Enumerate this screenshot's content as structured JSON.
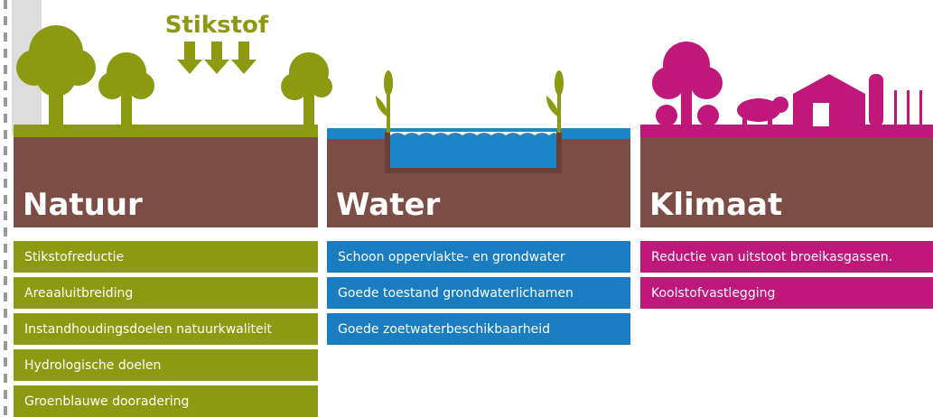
{
  "header": {
    "title": "Stikstof"
  },
  "columns": [
    {
      "title": "Natuur",
      "items": [
        "Stikstofreductie",
        "Areaaluitbreiding",
        "Instandhoudingsdoelen natuurkwaliteit",
        "Hydrologische doelen",
        "Groenblauwe dooradering"
      ]
    },
    {
      "title": "Water",
      "items": [
        "Schoon oppervlakte- en grondwater",
        "Goede toestand grondwaterlichamen",
        "Goede zoetwaterbeschikbaarheid"
      ]
    },
    {
      "title": "Klimaat",
      "items": [
        "Reductie van uitstoot broeikasgassen.",
        "Koolstofvastlegging"
      ]
    }
  ]
}
